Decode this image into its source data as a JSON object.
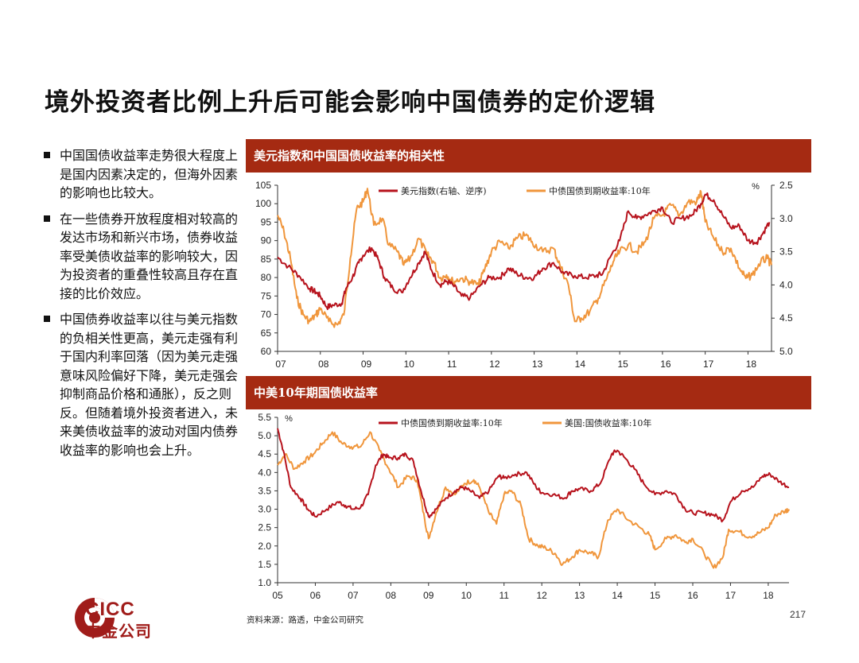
{
  "page": {
    "title": "境外投资者比例上升后可能会影响中国债券的定价逻辑",
    "bullets": [
      "中国国债收益率走势很大程度上是国内因素决定的，但海外因素的影响也比较大。",
      "在一些债券开放程度相对较高的发达市场和新兴市场，债券收益率受美债收益率的影响较大，因为投资者的重叠性较高且存在直接的比价效应。",
      "中国债券收益率以往与美元指数的负相关性更高，美元走强有利于国内利率回落（因为美元走强意味风险偏好下降，美元走强会抑制商品价格和通胀），反之则反。但随着境外投资者进入，未来美债收益率的波动对国内债券收益率的影响也会上升。"
    ],
    "source": "资料来源：路透，中金公司研究",
    "page_number": "217",
    "logo_en": "CICC",
    "logo_cn": "中金公司"
  },
  "colors": {
    "header": "#a52a12",
    "dark_red": "#b7131d",
    "orange": "#f0963c"
  },
  "chart_data": [
    {
      "type": "line",
      "title": "美元指数和中国国债收益率的相关性",
      "x_ticks": [
        "07",
        "08",
        "09",
        "10",
        "11",
        "12",
        "13",
        "14",
        "15",
        "16",
        "17",
        "18"
      ],
      "left_axis": {
        "ticks": [
          "105",
          "100",
          "95",
          "90",
          "85",
          "80",
          "75",
          "70",
          "65",
          "60"
        ],
        "range": [
          60,
          105
        ]
      },
      "right_axis": {
        "unit": "%",
        "ticks": [
          "2.5",
          "3.0",
          "3.5",
          "4.0",
          "4.5",
          "5.0"
        ],
        "range": [
          2.5,
          5.0
        ],
        "inverted": true
      },
      "legend_position": "top",
      "series": [
        {
          "name": "美元指数(右轴、逆序)",
          "color": "#b7131d",
          "axis": "left",
          "points": [
            [
              2007.0,
              85.5
            ],
            [
              2007.25,
              83
            ],
            [
              2007.5,
              80.5
            ],
            [
              2007.75,
              77
            ],
            [
              2007.9,
              76
            ],
            [
              2008.0,
              75
            ],
            [
              2008.15,
              72
            ],
            [
              2008.3,
              72.5
            ],
            [
              2008.5,
              73
            ],
            [
              2008.6,
              77
            ],
            [
              2008.75,
              80
            ],
            [
              2008.9,
              84
            ],
            [
              2009.0,
              86
            ],
            [
              2009.2,
              88
            ],
            [
              2009.35,
              85
            ],
            [
              2009.5,
              80
            ],
            [
              2009.7,
              77
            ],
            [
              2009.9,
              76
            ],
            [
              2010.1,
              80
            ],
            [
              2010.3,
              84
            ],
            [
              2010.45,
              87
            ],
            [
              2010.6,
              82
            ],
            [
              2010.8,
              78
            ],
            [
              2010.95,
              79
            ],
            [
              2011.1,
              78
            ],
            [
              2011.3,
              75
            ],
            [
              2011.5,
              74.5
            ],
            [
              2011.75,
              78
            ],
            [
              2011.95,
              80
            ],
            [
              2012.2,
              80
            ],
            [
              2012.4,
              82.5
            ],
            [
              2012.6,
              81
            ],
            [
              2012.8,
              80
            ],
            [
              2013.0,
              80
            ],
            [
              2013.2,
              82.5
            ],
            [
              2013.45,
              84
            ],
            [
              2013.7,
              81
            ],
            [
              2013.95,
              80.5
            ],
            [
              2014.2,
              80
            ],
            [
              2014.45,
              80.5
            ],
            [
              2014.6,
              81
            ],
            [
              2014.8,
              86
            ],
            [
              2015.0,
              90
            ],
            [
              2015.2,
              98
            ],
            [
              2015.4,
              96
            ],
            [
              2015.6,
              97
            ],
            [
              2015.8,
              98
            ],
            [
              2016.0,
              99
            ],
            [
              2016.2,
              95
            ],
            [
              2016.45,
              96
            ],
            [
              2016.7,
              97
            ],
            [
              2016.9,
              100
            ],
            [
              2017.0,
              102.5
            ],
            [
              2017.2,
              101
            ],
            [
              2017.4,
              97
            ],
            [
              2017.6,
              93.5
            ],
            [
              2017.8,
              94
            ],
            [
              2018.0,
              90
            ],
            [
              2018.2,
              89.5
            ],
            [
              2018.35,
              92
            ],
            [
              2018.5,
              95
            ]
          ]
        },
        {
          "name": "中债国债到期收益率:10年",
          "color": "#f0963c",
          "axis": "right",
          "points": [
            [
              2007.0,
              2.95
            ],
            [
              2007.15,
              3.2
            ],
            [
              2007.3,
              3.6
            ],
            [
              2007.45,
              4.2
            ],
            [
              2007.6,
              4.45
            ],
            [
              2007.75,
              4.55
            ],
            [
              2007.9,
              4.45
            ],
            [
              2008.0,
              4.35
            ],
            [
              2008.2,
              4.55
            ],
            [
              2008.4,
              4.6
            ],
            [
              2008.55,
              4.45
            ],
            [
              2008.7,
              3.6
            ],
            [
              2008.85,
              2.85
            ],
            [
              2009.0,
              2.75
            ],
            [
              2009.1,
              2.55
            ],
            [
              2009.25,
              3.1
            ],
            [
              2009.45,
              3.0
            ],
            [
              2009.6,
              3.4
            ],
            [
              2009.8,
              3.5
            ],
            [
              2009.95,
              3.7
            ],
            [
              2010.1,
              3.6
            ],
            [
              2010.3,
              3.3
            ],
            [
              2010.5,
              3.55
            ],
            [
              2010.65,
              3.65
            ],
            [
              2010.8,
              3.9
            ],
            [
              2010.95,
              3.85
            ],
            [
              2011.1,
              3.95
            ],
            [
              2011.3,
              3.9
            ],
            [
              2011.5,
              3.95
            ],
            [
              2011.7,
              4.0
            ],
            [
              2011.85,
              3.75
            ],
            [
              2012.0,
              3.5
            ],
            [
              2012.2,
              3.35
            ],
            [
              2012.4,
              3.45
            ],
            [
              2012.6,
              3.3
            ],
            [
              2012.8,
              3.25
            ],
            [
              2012.95,
              3.35
            ],
            [
              2013.2,
              3.5
            ],
            [
              2013.45,
              3.45
            ],
            [
              2013.6,
              3.7
            ],
            [
              2013.8,
              4.0
            ],
            [
              2013.95,
              4.55
            ],
            [
              2014.1,
              4.5
            ],
            [
              2014.3,
              4.4
            ],
            [
              2014.5,
              4.2
            ],
            [
              2014.7,
              3.9
            ],
            [
              2014.85,
              3.65
            ],
            [
              2015.0,
              3.5
            ],
            [
              2015.2,
              3.4
            ],
            [
              2015.4,
              3.5
            ],
            [
              2015.6,
              3.35
            ],
            [
              2015.8,
              3.0
            ],
            [
              2016.0,
              2.95
            ],
            [
              2016.2,
              2.8
            ],
            [
              2016.4,
              2.95
            ],
            [
              2016.6,
              2.75
            ],
            [
              2016.8,
              2.75
            ],
            [
              2016.9,
              2.6
            ],
            [
              2017.0,
              3.05
            ],
            [
              2017.2,
              3.3
            ],
            [
              2017.4,
              3.5
            ],
            [
              2017.6,
              3.45
            ],
            [
              2017.8,
              3.75
            ],
            [
              2017.95,
              3.9
            ],
            [
              2018.1,
              3.85
            ],
            [
              2018.3,
              3.65
            ],
            [
              2018.45,
              3.6
            ],
            [
              2018.55,
              3.7
            ]
          ]
        }
      ]
    },
    {
      "type": "line",
      "title": "中美10年期国债收益率",
      "unit": "%",
      "x_ticks": [
        "05",
        "06",
        "07",
        "08",
        "09",
        "10",
        "11",
        "12",
        "13",
        "14",
        "15",
        "16",
        "17",
        "18"
      ],
      "y_axis": {
        "ticks": [
          "5.5",
          "5.0",
          "4.5",
          "4.0",
          "3.5",
          "3.0",
          "2.5",
          "2.0",
          "1.5",
          "1.0"
        ],
        "range": [
          1.0,
          5.5
        ]
      },
      "legend_position": "top",
      "series": [
        {
          "name": "中债国债到期收益率:10年",
          "color": "#b7131d",
          "points": [
            [
              2005.0,
              5.2
            ],
            [
              2005.15,
              4.6
            ],
            [
              2005.35,
              3.6
            ],
            [
              2005.6,
              3.3
            ],
            [
              2005.8,
              3.0
            ],
            [
              2006.0,
              2.8
            ],
            [
              2006.3,
              3.0
            ],
            [
              2006.6,
              3.2
            ],
            [
              2006.8,
              3.1
            ],
            [
              2007.0,
              3.0
            ],
            [
              2007.2,
              3.05
            ],
            [
              2007.4,
              3.4
            ],
            [
              2007.6,
              4.2
            ],
            [
              2007.8,
              4.5
            ],
            [
              2007.95,
              4.4
            ],
            [
              2008.2,
              4.4
            ],
            [
              2008.4,
              4.5
            ],
            [
              2008.6,
              4.3
            ],
            [
              2008.8,
              3.5
            ],
            [
              2009.0,
              2.8
            ],
            [
              2009.2,
              3.0
            ],
            [
              2009.45,
              3.3
            ],
            [
              2009.7,
              3.5
            ],
            [
              2009.9,
              3.6
            ],
            [
              2010.1,
              3.5
            ],
            [
              2010.35,
              3.3
            ],
            [
              2010.6,
              3.5
            ],
            [
              2010.85,
              3.9
            ],
            [
              2011.0,
              3.85
            ],
            [
              2011.3,
              3.95
            ],
            [
              2011.6,
              4.0
            ],
            [
              2011.85,
              3.6
            ],
            [
              2012.0,
              3.45
            ],
            [
              2012.3,
              3.4
            ],
            [
              2012.6,
              3.3
            ],
            [
              2012.8,
              3.5
            ],
            [
              2013.0,
              3.55
            ],
            [
              2013.3,
              3.5
            ],
            [
              2013.55,
              3.7
            ],
            [
              2013.85,
              4.5
            ],
            [
              2014.0,
              4.6
            ],
            [
              2014.2,
              4.4
            ],
            [
              2014.45,
              4.1
            ],
            [
              2014.7,
              3.7
            ],
            [
              2015.0,
              3.4
            ],
            [
              2015.3,
              3.5
            ],
            [
              2015.55,
              3.4
            ],
            [
              2015.8,
              3.0
            ],
            [
              2016.0,
              2.9
            ],
            [
              2016.3,
              2.9
            ],
            [
              2016.55,
              2.85
            ],
            [
              2016.8,
              2.7
            ],
            [
              2017.0,
              3.2
            ],
            [
              2017.3,
              3.5
            ],
            [
              2017.6,
              3.6
            ],
            [
              2017.85,
              3.9
            ],
            [
              2018.05,
              3.95
            ],
            [
              2018.3,
              3.75
            ],
            [
              2018.55,
              3.6
            ]
          ]
        },
        {
          "name": "美国:国债收益率:10年",
          "color": "#f0963c",
          "points": [
            [
              2005.0,
              4.2
            ],
            [
              2005.2,
              4.5
            ],
            [
              2005.45,
              4.1
            ],
            [
              2005.7,
              4.3
            ],
            [
              2005.95,
              4.5
            ],
            [
              2006.2,
              4.8
            ],
            [
              2006.45,
              5.1
            ],
            [
              2006.7,
              4.8
            ],
            [
              2006.95,
              4.7
            ],
            [
              2007.2,
              4.7
            ],
            [
              2007.45,
              5.1
            ],
            [
              2007.7,
              4.6
            ],
            [
              2007.95,
              4.1
            ],
            [
              2008.2,
              3.6
            ],
            [
              2008.45,
              3.9
            ],
            [
              2008.7,
              3.8
            ],
            [
              2008.9,
              2.7
            ],
            [
              2009.0,
              2.2
            ],
            [
              2009.2,
              2.9
            ],
            [
              2009.45,
              3.6
            ],
            [
              2009.7,
              3.4
            ],
            [
              2009.95,
              3.7
            ],
            [
              2010.2,
              3.8
            ],
            [
              2010.35,
              3.6
            ],
            [
              2010.6,
              2.9
            ],
            [
              2010.8,
              2.6
            ],
            [
              2011.0,
              3.4
            ],
            [
              2011.2,
              3.5
            ],
            [
              2011.45,
              3.1
            ],
            [
              2011.65,
              2.2
            ],
            [
              2011.9,
              2.0
            ],
            [
              2012.1,
              1.95
            ],
            [
              2012.35,
              1.8
            ],
            [
              2012.55,
              1.5
            ],
            [
              2012.8,
              1.7
            ],
            [
              2013.0,
              1.9
            ],
            [
              2013.3,
              1.8
            ],
            [
              2013.5,
              1.7
            ],
            [
              2013.75,
              2.7
            ],
            [
              2014.0,
              3.0
            ],
            [
              2014.3,
              2.7
            ],
            [
              2014.6,
              2.5
            ],
            [
              2014.85,
              2.3
            ],
            [
              2015.0,
              1.9
            ],
            [
              2015.3,
              2.2
            ],
            [
              2015.55,
              2.3
            ],
            [
              2015.8,
              2.1
            ],
            [
              2016.0,
              2.2
            ],
            [
              2016.3,
              1.8
            ],
            [
              2016.55,
              1.4
            ],
            [
              2016.8,
              1.7
            ],
            [
              2016.95,
              2.45
            ],
            [
              2017.2,
              2.4
            ],
            [
              2017.5,
              2.25
            ],
            [
              2017.75,
              2.35
            ],
            [
              2018.0,
              2.5
            ],
            [
              2018.2,
              2.85
            ],
            [
              2018.45,
              2.95
            ],
            [
              2018.55,
              3.0
            ]
          ]
        }
      ]
    }
  ]
}
